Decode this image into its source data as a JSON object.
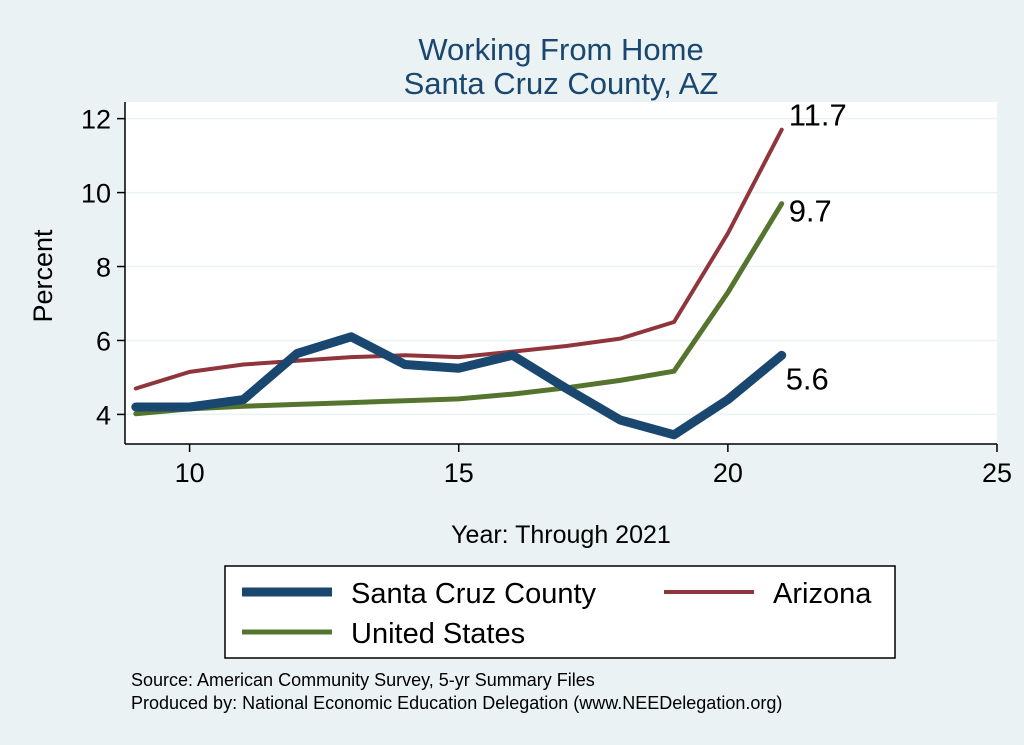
{
  "colors": {
    "background": "#eaf2f3",
    "plot_background": "#ffffff",
    "title": "#1a476f",
    "gridline": "#eaf2f3",
    "axis": "#000000",
    "text": "#000000"
  },
  "chart_data": {
    "type": "line",
    "title_lines": [
      "Working From Home",
      "Santa Cruz County, AZ"
    ],
    "xlabel": "Year: Through 2021",
    "ylabel": "Percent",
    "xlim": [
      8.8,
      25
    ],
    "ylim": [
      3.2,
      12.45
    ],
    "xticks": [
      10,
      15,
      20,
      25
    ],
    "yticks": [
      4,
      6,
      8,
      10,
      12
    ],
    "grid": true,
    "legend_position": "bottom",
    "series": [
      {
        "name": "Santa Cruz County",
        "color": "#1a476f",
        "weight": "thick",
        "x": [
          9,
          10,
          11,
          12,
          13,
          14,
          15,
          16,
          17,
          18,
          19,
          20,
          21
        ],
        "y": [
          4.2,
          4.2,
          4.4,
          5.65,
          6.1,
          5.35,
          5.25,
          5.6,
          4.7,
          3.85,
          3.45,
          4.4,
          5.6
        ],
        "end_label": "5.6"
      },
      {
        "name": "Arizona",
        "color": "#90353b",
        "weight": "thin",
        "x": [
          9,
          10,
          11,
          12,
          13,
          14,
          15,
          16,
          17,
          18,
          19,
          20,
          21
        ],
        "y": [
          4.7,
          5.15,
          5.35,
          5.45,
          5.55,
          5.6,
          5.55,
          5.7,
          5.85,
          6.05,
          6.5,
          8.9,
          11.7
        ],
        "end_label": "11.7"
      },
      {
        "name": "United States",
        "color": "#55752f",
        "weight": "medium",
        "x": [
          9,
          10,
          11,
          12,
          13,
          14,
          15,
          16,
          17,
          18,
          19,
          20,
          21
        ],
        "y": [
          4.02,
          4.15,
          4.22,
          4.27,
          4.32,
          4.37,
          4.42,
          4.55,
          4.72,
          4.92,
          5.17,
          7.3,
          9.7
        ],
        "end_label": "9.7"
      }
    ],
    "source_lines": [
      "Source: American Community Survey, 5-yr Summary Files",
      "Produced by: National Economic Education Delegation (www.NEEDelegation.org)"
    ]
  }
}
